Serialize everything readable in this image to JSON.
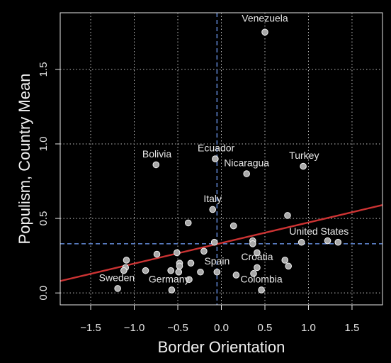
{
  "chart_data": {
    "type": "scatter",
    "title": "",
    "xlabel": "Border Orientation",
    "ylabel": "Populism, Country Mean",
    "xlim": [
      -1.85,
      1.85
    ],
    "ylim": [
      -0.08,
      1.88
    ],
    "x_ticks": [
      -1.5,
      -1.0,
      -0.5,
      0.0,
      0.5,
      1.0,
      1.5
    ],
    "x_tick_labels": [
      "−1.5",
      "−1.0",
      "−0.5",
      "0.0",
      "0.5",
      "1.0",
      "1.5"
    ],
    "y_ticks": [
      0.0,
      0.5,
      1.0,
      1.5
    ],
    "y_tick_labels": [
      "0.0",
      "0.5",
      "1.0",
      "1.5"
    ],
    "grid": true,
    "reference_lines": {
      "x_mean": -0.05,
      "y_mean": 0.33
    },
    "regression": {
      "x": [
        -1.85,
        1.85
      ],
      "y": [
        0.08,
        0.59
      ]
    },
    "points": [
      {
        "x": 0.5,
        "y": 1.75
      },
      {
        "x": -0.07,
        "y": 0.9
      },
      {
        "x": -0.75,
        "y": 0.86
      },
      {
        "x": 0.94,
        "y": 0.85
      },
      {
        "x": 0.29,
        "y": 0.8
      },
      {
        "x": -0.1,
        "y": 0.56
      },
      {
        "x": 0.76,
        "y": 0.52
      },
      {
        "x": -0.38,
        "y": 0.47
      },
      {
        "x": 0.14,
        "y": 0.45
      },
      {
        "x": -0.08,
        "y": 0.34
      },
      {
        "x": 0.36,
        "y": 0.35
      },
      {
        "x": 0.36,
        "y": 0.33
      },
      {
        "x": 0.92,
        "y": 0.34
      },
      {
        "x": 1.22,
        "y": 0.35
      },
      {
        "x": 1.34,
        "y": 0.34
      },
      {
        "x": -0.2,
        "y": 0.28
      },
      {
        "x": -0.51,
        "y": 0.27
      },
      {
        "x": -0.74,
        "y": 0.26
      },
      {
        "x": -1.09,
        "y": 0.22
      },
      {
        "x": 0.41,
        "y": 0.27
      },
      {
        "x": -0.48,
        "y": 0.2
      },
      {
        "x": -0.35,
        "y": 0.2
      },
      {
        "x": 0.73,
        "y": 0.22
      },
      {
        "x": 0.77,
        "y": 0.18
      },
      {
        "x": -0.48,
        "y": 0.18
      },
      {
        "x": -1.1,
        "y": 0.17
      },
      {
        "x": -1.12,
        "y": 0.15
      },
      {
        "x": 0.41,
        "y": 0.17
      },
      {
        "x": -0.87,
        "y": 0.15
      },
      {
        "x": -0.58,
        "y": 0.15
      },
      {
        "x": -0.49,
        "y": 0.14
      },
      {
        "x": -0.24,
        "y": 0.14
      },
      {
        "x": -0.05,
        "y": 0.14
      },
      {
        "x": 0.37,
        "y": 0.13
      },
      {
        "x": 0.17,
        "y": 0.12
      },
      {
        "x": -0.37,
        "y": 0.09
      },
      {
        "x": -1.19,
        "y": 0.03
      },
      {
        "x": -0.57,
        "y": 0.02
      },
      {
        "x": 0.46,
        "y": 0.02
      }
    ],
    "annotations": [
      {
        "text": "Venezuela",
        "x": 0.5,
        "y": 1.82
      },
      {
        "text": "Ecuador",
        "x": -0.06,
        "y": 0.95
      },
      {
        "text": "Bolivia",
        "x": -0.74,
        "y": 0.91
      },
      {
        "text": "Turkey",
        "x": 0.95,
        "y": 0.9
      },
      {
        "text": "Nicaragua",
        "x": 0.29,
        "y": 0.85
      },
      {
        "text": "Italy",
        "x": -0.1,
        "y": 0.61
      },
      {
        "text": "United States",
        "x": 1.12,
        "y": 0.39
      },
      {
        "text": "Spain",
        "x": -0.05,
        "y": 0.19
      },
      {
        "text": "Croatia",
        "x": 0.41,
        "y": 0.22
      },
      {
        "text": "Sweden",
        "x": -1.2,
        "y": 0.08
      },
      {
        "text": "Germany",
        "x": -0.6,
        "y": 0.07
      },
      {
        "text": "Colombia",
        "x": 0.46,
        "y": 0.07
      }
    ],
    "colors": {
      "background": "#000000",
      "axes": "#e6e6e6",
      "grid": "#bfbfbf",
      "point_fill": "#a8a8a8",
      "point_stroke": "#f2f2f2",
      "regression": "#cc3333",
      "reference": "#5b7fc7"
    }
  }
}
